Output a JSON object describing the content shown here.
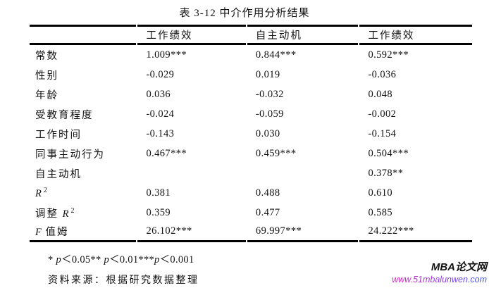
{
  "title": "表 3-12 中介作用分析结果",
  "table": {
    "headers": [
      "",
      "工作绩效",
      "自主动机",
      "工作绩效"
    ],
    "rows": [
      {
        "label_pre": "常数",
        "values": [
          "1.009***",
          "0.844***",
          "0.592***"
        ]
      },
      {
        "label_pre": "性别",
        "values": [
          "-0.029",
          "0.019",
          "-0.036"
        ]
      },
      {
        "label_pre": "年龄",
        "values": [
          "0.036",
          "-0.032",
          "0.048"
        ]
      },
      {
        "label_pre": "受教育程度",
        "values": [
          "-0.024",
          "-0.059",
          "-0.002"
        ]
      },
      {
        "label_pre": "工作时间",
        "values": [
          "-0.143",
          "0.030",
          "-0.154"
        ]
      },
      {
        "label_pre": "同事主动行为",
        "values": [
          "0.467***",
          "0.459***",
          "0.504***"
        ]
      },
      {
        "label_pre": "自主动机",
        "values": [
          "",
          "",
          "0.378**"
        ]
      },
      {
        "label_it": "R",
        "label_sup": "2",
        "values": [
          "0.381",
          "0.488",
          "0.610"
        ]
      },
      {
        "label_pre": "调整 ",
        "label_it": "R",
        "label_sup": "2",
        "values": [
          "0.359",
          "0.477",
          "0.585"
        ]
      },
      {
        "label_it": "F",
        "label_post": " 值姆",
        "values": [
          "26.102***",
          "69.997***",
          "24.222***"
        ]
      }
    ]
  },
  "footnote": {
    "seg1": "* ",
    "p": "p",
    "seg2": "＜0.05** ",
    "seg3": "＜0.01***",
    "seg4": "＜0.001"
  },
  "source": "资料来源：根据研究数据整理",
  "watermark": {
    "name": "MBA论文网",
    "url": "www.51mbalunwen.com",
    "url_color_start": "#e81fd0",
    "url_color_end": "#3a5cf0"
  }
}
